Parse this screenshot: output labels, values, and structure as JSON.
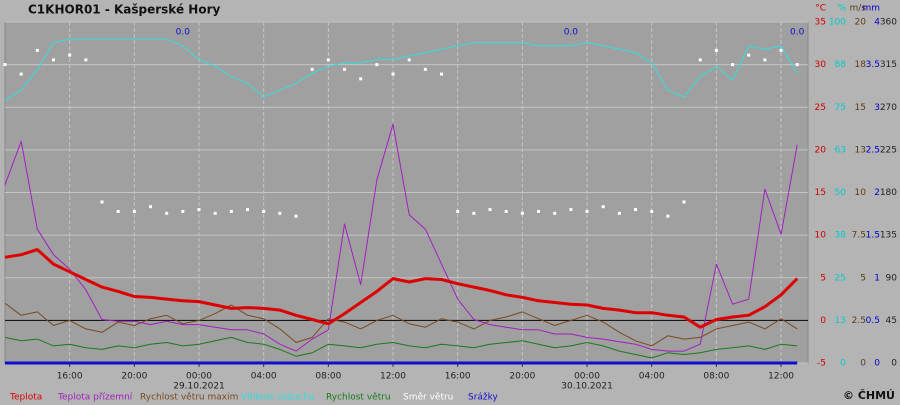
{
  "chart_data": {
    "type": "line",
    "title": "C1KHOR01 - Kašperské Hory",
    "footer": "© ČHMÚ",
    "xlim": [
      "28.10.2021 12:00",
      "30.10.2021 13:40"
    ],
    "x": [
      "28.10.2021 12:00",
      "28.10.2021 13:00",
      "28.10.2021 14:00",
      "28.10.2021 15:00",
      "28.10.2021 16:00",
      "28.10.2021 17:00",
      "28.10.2021 18:00",
      "28.10.2021 19:00",
      "28.10.2021 20:00",
      "28.10.2021 21:00",
      "28.10.2021 22:00",
      "28.10.2021 23:00",
      "29.10.2021 00:00",
      "29.10.2021 01:00",
      "29.10.2021 02:00",
      "29.10.2021 03:00",
      "29.10.2021 04:00",
      "29.10.2021 05:00",
      "29.10.2021 06:00",
      "29.10.2021 07:00",
      "29.10.2021 08:00",
      "29.10.2021 09:00",
      "29.10.2021 10:00",
      "29.10.2021 11:00",
      "29.10.2021 12:00",
      "29.10.2021 13:00",
      "29.10.2021 14:00",
      "29.10.2021 15:00",
      "29.10.2021 16:00",
      "29.10.2021 17:00",
      "29.10.2021 18:00",
      "29.10.2021 19:00",
      "29.10.2021 20:00",
      "29.10.2021 21:00",
      "29.10.2021 22:00",
      "29.10.2021 23:00",
      "30.10.2021 00:00",
      "30.10.2021 01:00",
      "30.10.2021 02:00",
      "30.10.2021 03:00",
      "30.10.2021 04:00",
      "30.10.2021 05:00",
      "30.10.2021 06:00",
      "30.10.2021 07:00",
      "30.10.2021 08:00",
      "30.10.2021 09:00",
      "30.10.2021 10:00",
      "30.10.2021 11:00",
      "30.10.2021 12:00",
      "30.10.2021 13:00"
    ],
    "xticks": [
      {
        "value": "28.10.2021 16:00",
        "label": "16:00"
      },
      {
        "value": "28.10.2021 20:00",
        "label": "20:00"
      },
      {
        "value": "29.10.2021 00:00",
        "label": "00:00"
      },
      {
        "value": "29.10.2021 04:00",
        "label": "04:00"
      },
      {
        "value": "29.10.2021 08:00",
        "label": "08:00"
      },
      {
        "value": "29.10.2021 12:00",
        "label": "12:00"
      },
      {
        "value": "29.10.2021 16:00",
        "label": "16:00"
      },
      {
        "value": "29.10.2021 20:00",
        "label": "20:00"
      },
      {
        "value": "30.10.2021 00:00",
        "label": "00:00"
      },
      {
        "value": "30.10.2021 04:00",
        "label": "04:00"
      },
      {
        "value": "30.10.2021 08:00",
        "label": "08:00"
      },
      {
        "value": "30.10.2021 12:00",
        "label": "12:00"
      }
    ],
    "date_labels": [
      {
        "value": "29.10.2021 00:00",
        "label": "29.10.2021"
      },
      {
        "value": "30.10.2021 00:00",
        "label": "30.10.2021"
      }
    ],
    "ylabel": "°C",
    "ycolor": "#cc0000",
    "ylim": [
      -5,
      35
    ],
    "yticks": [
      -5,
      0,
      5,
      10,
      15,
      20,
      25,
      30,
      35
    ],
    "y2label": "%",
    "y2color": "#00cccc",
    "y2lim": [
      0,
      100
    ],
    "y2ticks": [
      0,
      {
        "value": 12.5,
        "label": "13"
      },
      25,
      {
        "value": 37.5,
        "label": "38"
      },
      50,
      {
        "value": 62.5,
        "label": "63"
      },
      75,
      {
        "value": 87.5,
        "label": "88"
      },
      100
    ],
    "y3label": "m/s",
    "y3color": "#5a3a1a",
    "y3lim": [
      0,
      20
    ],
    "y3ticks": [
      0,
      2.5,
      5,
      7.5,
      10,
      {
        "value": 12.5,
        "label": "13"
      },
      15,
      {
        "value": 17.5,
        "label": "18"
      },
      20
    ],
    "y4label": "mm",
    "y4color": "#0000cc",
    "y4lim": [
      0,
      4
    ],
    "y4ticks": [
      0,
      0.5,
      1,
      1.5,
      2,
      2.5,
      3,
      3.5,
      4
    ],
    "y5color": "#222222",
    "y5lim": [
      0,
      360
    ],
    "y5ticks": [
      0,
      45,
      90,
      135,
      180,
      225,
      270,
      315,
      360
    ],
    "reference_line": 0,
    "grid": true,
    "series": [
      {
        "name": "Teplota",
        "color": "#dd0000",
        "axis": "y",
        "line_width": 3,
        "values": [
          7.4,
          7.7,
          8.3,
          6.6,
          5.7,
          4.8,
          3.9,
          3.4,
          2.8,
          2.7,
          2.5,
          2.3,
          2.2,
          1.8,
          1.4,
          1.5,
          1.4,
          1.2,
          0.6,
          0.1,
          -0.4,
          0.8,
          2.1,
          3.4,
          4.9,
          4.5,
          4.9,
          4.8,
          4.3,
          3.9,
          3.5,
          3.0,
          2.7,
          2.3,
          2.1,
          1.9,
          1.8,
          1.4,
          1.2,
          0.9,
          0.9,
          0.6,
          0.4,
          -0.8,
          0.1,
          0.4,
          0.6,
          1.6,
          3.0,
          4.9
        ]
      },
      {
        "name": "Teplota přízemní",
        "color": "#a020c0",
        "axis": "y",
        "values": [
          15.9,
          21.0,
          10.7,
          7.7,
          6.0,
          3.6,
          0.1,
          -0.1,
          -0.1,
          -0.5,
          -0.1,
          -0.5,
          -0.5,
          -0.8,
          -1.1,
          -1.1,
          -1.6,
          -2.8,
          -3.6,
          -2.2,
          -1.1,
          11.3,
          4.2,
          16.5,
          23.0,
          12.4,
          10.7,
          6.6,
          2.5,
          0.1,
          -0.5,
          -0.8,
          -1.1,
          -1.1,
          -1.6,
          -1.6,
          -2.0,
          -2.2,
          -2.5,
          -2.8,
          -3.4,
          -3.6,
          -3.6,
          -2.8,
          6.6,
          1.9,
          2.5,
          15.4,
          10.1,
          20.6
        ]
      },
      {
        "name": "Rychlost větru maxim",
        "color": "#7a4a20",
        "axis": "y3",
        "values": [
          3.5,
          2.8,
          3.0,
          2.2,
          2.5,
          2.0,
          1.8,
          2.4,
          2.2,
          2.6,
          2.8,
          2.3,
          2.5,
          2.9,
          3.4,
          2.8,
          2.6,
          2.0,
          1.2,
          1.5,
          2.6,
          2.4,
          2.0,
          2.5,
          2.8,
          2.3,
          2.1,
          2.6,
          2.4,
          2.0,
          2.5,
          2.7,
          3.0,
          2.6,
          2.2,
          2.5,
          2.8,
          2.4,
          1.8,
          1.3,
          1.0,
          1.6,
          1.4,
          1.5,
          2.0,
          2.2,
          2.4,
          2.0,
          2.6,
          2.0
        ]
      },
      {
        "name": "Vlhkost vzduchu",
        "color": "#33dddd",
        "axis": "y2",
        "values": [
          77,
          80,
          86,
          94,
          95,
          95,
          95,
          95,
          95,
          95,
          95,
          93,
          89,
          87,
          84,
          82,
          78,
          80,
          82,
          85,
          87,
          88,
          88,
          89,
          89,
          90,
          91,
          92,
          93,
          94,
          94,
          94,
          94,
          93,
          93,
          93,
          94,
          93,
          92,
          91,
          88,
          80,
          78,
          84,
          87,
          83,
          93,
          92,
          93,
          85
        ]
      },
      {
        "name": "Rychlost větru",
        "color": "#1a7a1a",
        "axis": "y3",
        "values": [
          1.5,
          1.3,
          1.4,
          1.0,
          1.1,
          0.9,
          0.8,
          1.0,
          0.9,
          1.1,
          1.2,
          1.0,
          1.1,
          1.3,
          1.5,
          1.2,
          1.1,
          0.8,
          0.4,
          0.6,
          1.1,
          1.0,
          0.9,
          1.1,
          1.2,
          1.0,
          0.9,
          1.1,
          1.0,
          0.9,
          1.1,
          1.2,
          1.3,
          1.1,
          0.9,
          1.0,
          1.2,
          1.0,
          0.7,
          0.5,
          0.3,
          0.6,
          0.5,
          0.6,
          0.8,
          0.9,
          1.0,
          0.8,
          1.1,
          1.0
        ]
      },
      {
        "name": "Směr větru",
        "color": "#ffffff",
        "axis": "y5",
        "style": "dots",
        "values": [
          315,
          305,
          330,
          320,
          325,
          320,
          170,
          160,
          160,
          165,
          158,
          160,
          162,
          158,
          160,
          162,
          160,
          158,
          155,
          310,
          320,
          310,
          300,
          315,
          305,
          320,
          310,
          305,
          160,
          158,
          162,
          160,
          158,
          160,
          158,
          162,
          160,
          165,
          158,
          162,
          160,
          155,
          170,
          320,
          330,
          315,
          325,
          320,
          330,
          315
        ]
      },
      {
        "name": "Srážky",
        "color": "#1010cc",
        "axis": "y4",
        "line_width": 3,
        "values": [
          0,
          0,
          0,
          0,
          0,
          0,
          0,
          0,
          0,
          0,
          0,
          0,
          0,
          0,
          0,
          0,
          0,
          0,
          0,
          0,
          0,
          0,
          0,
          0,
          0,
          0,
          0,
          0,
          0,
          0,
          0,
          0,
          0,
          0,
          0,
          0,
          0,
          0,
          0,
          0,
          0,
          0,
          0,
          0,
          0,
          0,
          0,
          0,
          0,
          0
        ]
      }
    ],
    "annotations": [
      {
        "x": "28.10.2021 23:00",
        "text": "0.0"
      },
      {
        "x": "29.10.2021 23:00",
        "text": "0.0"
      },
      {
        "x": "30.10.2021 13:00",
        "text": "0.0"
      }
    ]
  }
}
